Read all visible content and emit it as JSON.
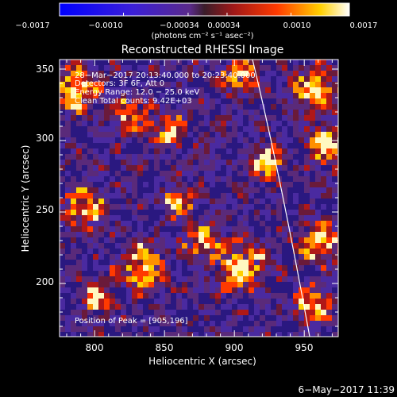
{
  "colorbar": {
    "ticks": [
      "−0.0017",
      "−0.0010",
      "−0.00034",
      "0.00034",
      "0.0010",
      "0.0017"
    ],
    "units": "(photons cm⁻² s⁻¹ asec⁻²)"
  },
  "title": "Reconstructed RHESSI Image",
  "info": {
    "line1": "28−Mar−2017 20:13:40.000 to 20:23:40.000",
    "line2": "Detectors: 3F 6F, Att 0",
    "line3": "Energy Range: 12.0 − 25.0 keV",
    "line4": "Clean      Total counts: 9.42E+03"
  },
  "peak": "Position of Peak = [905,196]",
  "xaxis": {
    "label": "Heliocentric X (arcsec)",
    "ticks": [
      "800",
      "850",
      "900",
      "950"
    ]
  },
  "yaxis": {
    "label": "Heliocentric Y (arcsec)",
    "ticks": [
      "350",
      "300",
      "250",
      "200"
    ]
  },
  "timestamp": "6−May−2017 11:39"
}
